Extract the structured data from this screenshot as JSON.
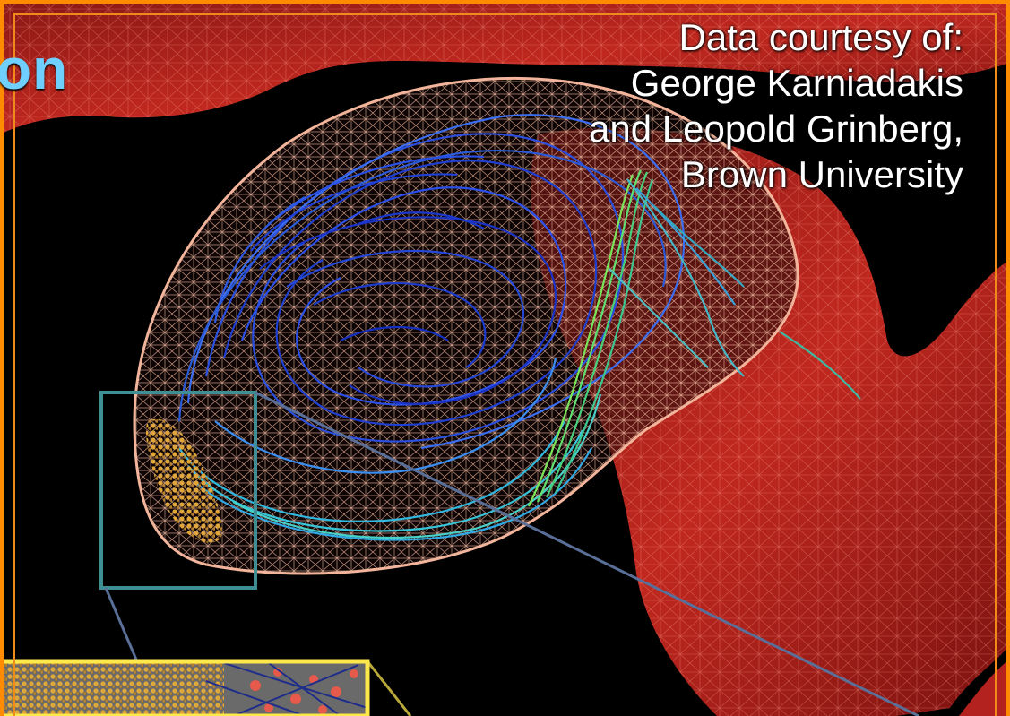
{
  "slide": {
    "title_fragment": "on",
    "credit": {
      "line1": "Data courtesy of:",
      "line2": "George Karniadakis",
      "line3": "and Leopold Grinberg,",
      "line4": "Brown University"
    }
  },
  "colors": {
    "frame": "#ff8c00",
    "title": "#6fd0ff",
    "vessel": "#b3221e",
    "mesh": "#f2b59b",
    "platelets": "#d9a234",
    "inset_box": "#3e8f95",
    "zoom_box": "#ffe84a"
  }
}
